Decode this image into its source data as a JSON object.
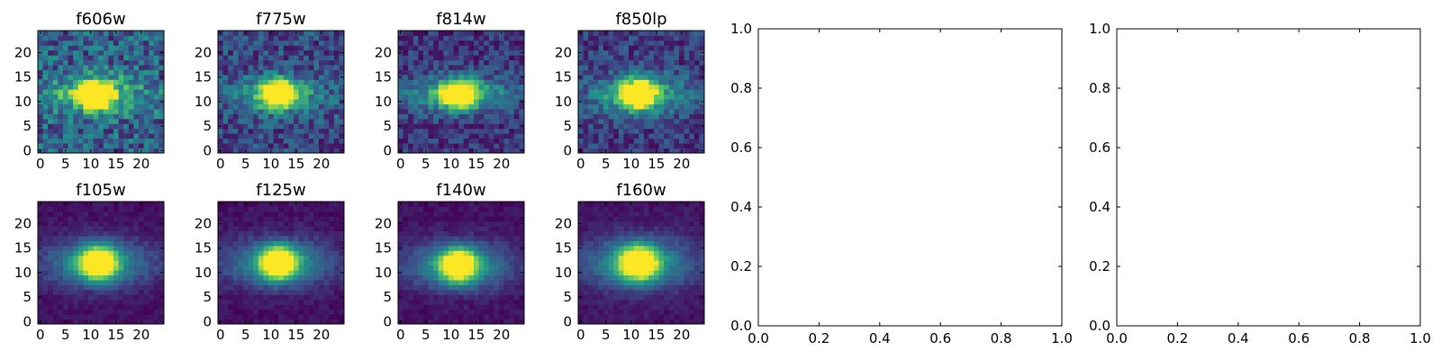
{
  "chart_data": {
    "type": "heatmap",
    "colormap": "viridis",
    "color_low": "#440154",
    "color_high": "#fde725",
    "image_grid": {
      "nx": 25,
      "ny": 25,
      "origin": "lower"
    },
    "xlim": [
      -0.5,
      24.5
    ],
    "ylim": [
      -0.5,
      24.5
    ],
    "image_ticks_x": [
      "0",
      "5",
      "10",
      "15",
      "20"
    ],
    "image_ticks_y": [
      "0",
      "5",
      "10",
      "15",
      "20"
    ],
    "panels": [
      {
        "title": "f606w",
        "center": [
          11,
          11.5
        ],
        "sigma_x": 2.2,
        "sigma_y": 1.8,
        "halo_sigma_x": 7.0,
        "halo_sigma_y": 2.6,
        "halo_amp": 0.45,
        "bg": 0.3,
        "noise": 0.22,
        "seed": 1
      },
      {
        "title": "f775w",
        "center": [
          11.5,
          11.5
        ],
        "sigma_x": 2.1,
        "sigma_y": 1.8,
        "halo_sigma_x": 6.5,
        "halo_sigma_y": 2.6,
        "halo_amp": 0.4,
        "bg": 0.22,
        "noise": 0.17,
        "seed": 2
      },
      {
        "title": "f814w",
        "center": [
          11.5,
          11.5
        ],
        "sigma_x": 2.2,
        "sigma_y": 1.8,
        "halo_sigma_x": 7.5,
        "halo_sigma_y": 2.6,
        "halo_amp": 0.48,
        "bg": 0.16,
        "noise": 0.14,
        "seed": 3
      },
      {
        "title": "f850lp",
        "center": [
          11.5,
          11.5
        ],
        "sigma_x": 2.2,
        "sigma_y": 1.9,
        "halo_sigma_x": 7.0,
        "halo_sigma_y": 2.8,
        "halo_amp": 0.45,
        "bg": 0.18,
        "noise": 0.15,
        "seed": 4
      },
      {
        "title": "f105w",
        "center": [
          11.5,
          12
        ],
        "sigma_x": 2.3,
        "sigma_y": 2.1,
        "halo_sigma_x": 7.5,
        "halo_sigma_y": 3.4,
        "halo_amp": 0.5,
        "bg": 0.05,
        "noise": 0.05,
        "seed": 5
      },
      {
        "title": "f125w",
        "center": [
          11.5,
          12
        ],
        "sigma_x": 2.3,
        "sigma_y": 2.1,
        "halo_sigma_x": 7.5,
        "halo_sigma_y": 3.4,
        "halo_amp": 0.5,
        "bg": 0.05,
        "noise": 0.05,
        "seed": 6
      },
      {
        "title": "f140w",
        "center": [
          11.5,
          11.5
        ],
        "sigma_x": 2.3,
        "sigma_y": 2.1,
        "halo_sigma_x": 7.5,
        "halo_sigma_y": 3.4,
        "halo_amp": 0.5,
        "bg": 0.05,
        "noise": 0.05,
        "seed": 7
      },
      {
        "title": "f160w",
        "center": [
          11.5,
          12
        ],
        "sigma_x": 2.4,
        "sigma_y": 2.2,
        "halo_sigma_x": 7.5,
        "halo_sigma_y": 3.6,
        "halo_amp": 0.52,
        "bg": 0.06,
        "noise": 0.05,
        "seed": 8
      }
    ],
    "empty_axes": [
      {
        "xlim": [
          0,
          1
        ],
        "ylim": [
          0,
          1
        ],
        "x_ticks": [
          "0.0",
          "0.2",
          "0.4",
          "0.6",
          "0.8",
          "1.0"
        ],
        "y_ticks": [
          "0.0",
          "0.2",
          "0.4",
          "0.6",
          "0.8",
          "1.0"
        ]
      },
      {
        "xlim": [
          0,
          1
        ],
        "ylim": [
          0,
          1
        ],
        "x_ticks": [
          "0.0",
          "0.2",
          "0.4",
          "0.6",
          "0.8",
          "1.0"
        ],
        "y_ticks": [
          "0.0",
          "0.2",
          "0.4",
          "0.6",
          "0.8",
          "1.0"
        ]
      }
    ]
  }
}
